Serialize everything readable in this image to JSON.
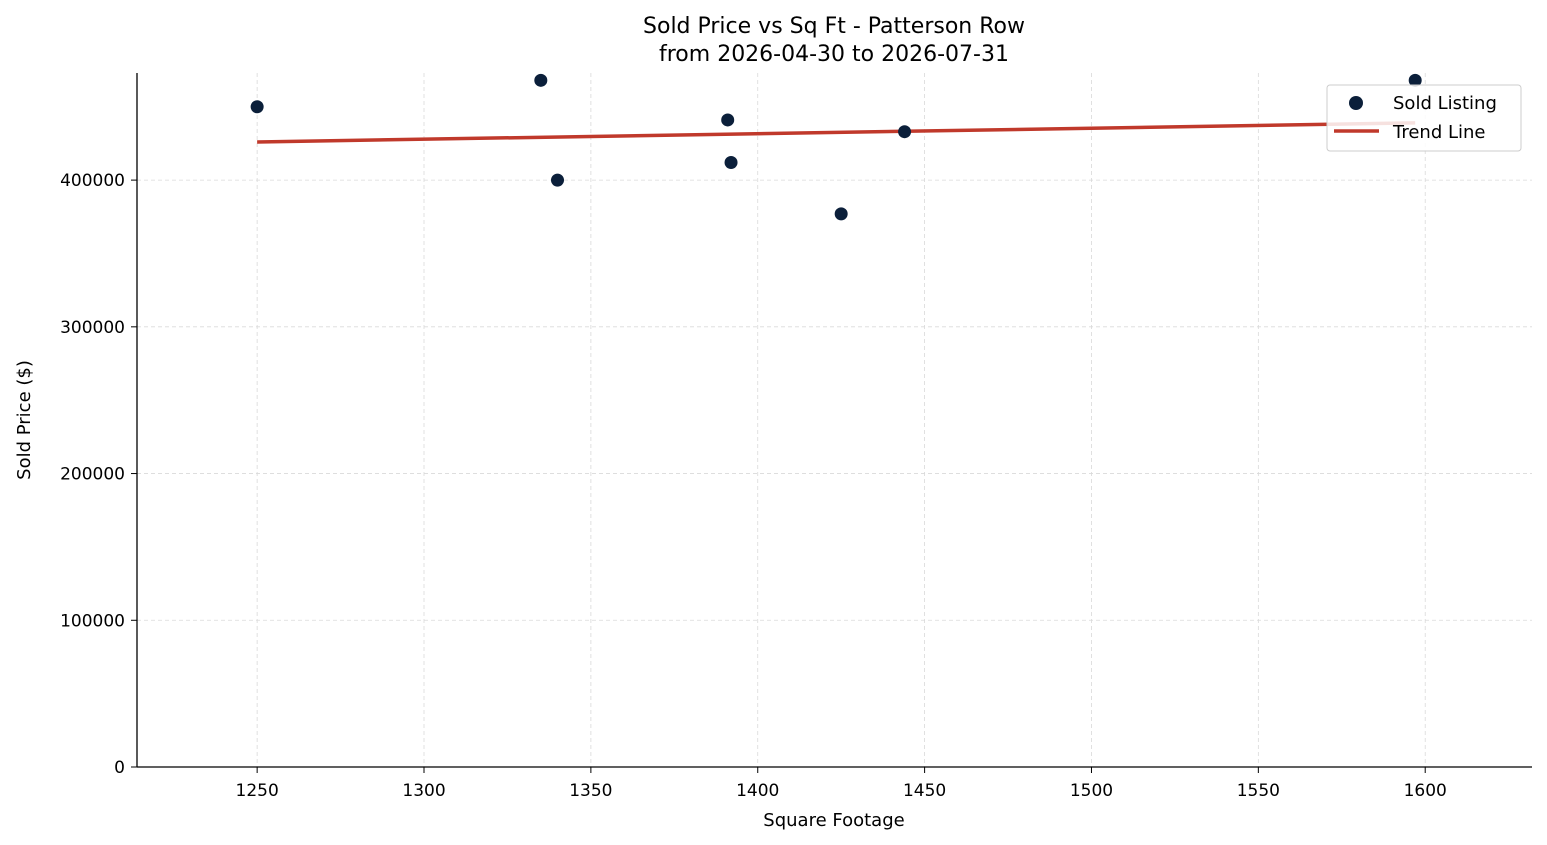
{
  "chart_data": {
    "type": "scatter",
    "title": "Sold Price vs Sq Ft - Patterson Row",
    "subtitle": "from 2026-04-30 to 2026-07-31",
    "xlabel": "Square Footage",
    "ylabel": "Sold Price ($)",
    "xlim": [
      1214,
      1632
    ],
    "ylim": [
      0,
      473000
    ],
    "xticks": [
      1250,
      1300,
      1350,
      1400,
      1450,
      1500,
      1550,
      1600
    ],
    "yticks": [
      0,
      100000,
      200000,
      300000,
      400000
    ],
    "grid": true,
    "legend_position": "upper-right",
    "series": [
      {
        "name": "Sold Listing",
        "kind": "scatter",
        "color": "#0b1f3a",
        "points": [
          {
            "x": 1250,
            "y": 450000
          },
          {
            "x": 1335,
            "y": 468000
          },
          {
            "x": 1340,
            "y": 400000
          },
          {
            "x": 1391,
            "y": 441000
          },
          {
            "x": 1392,
            "y": 412000
          },
          {
            "x": 1425,
            "y": 377000
          },
          {
            "x": 1444,
            "y": 433000
          },
          {
            "x": 1597,
            "y": 468000
          }
        ]
      },
      {
        "name": "Trend Line",
        "kind": "line",
        "color": "#c0392b",
        "points": [
          {
            "x": 1250,
            "y": 426000
          },
          {
            "x": 1597,
            "y": 439000
          }
        ]
      }
    ]
  }
}
